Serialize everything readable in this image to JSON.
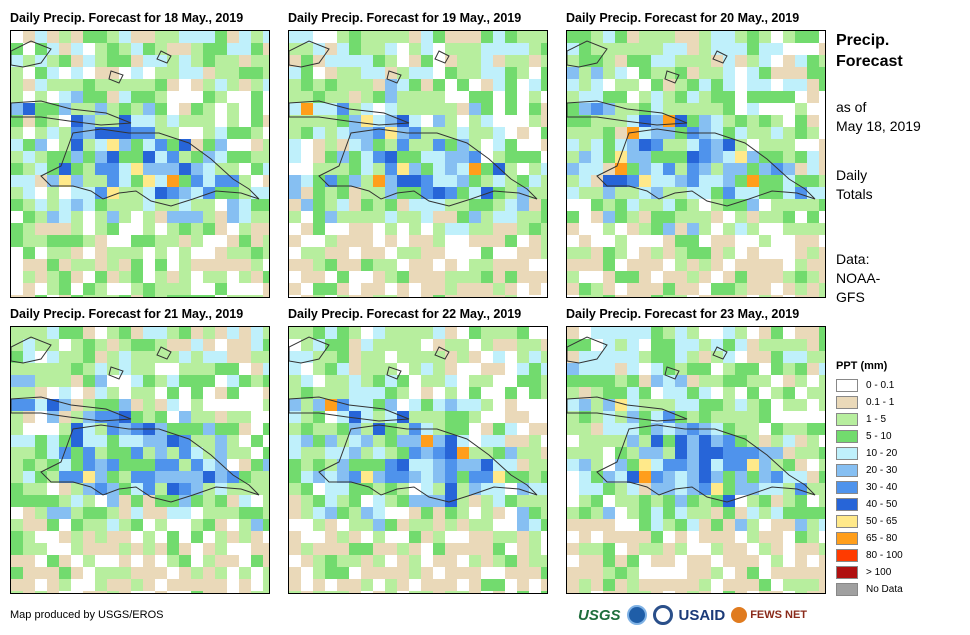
{
  "panels": [
    {
      "title": "Daily Precip. Forecast for 18 May., 2019",
      "seed": 18
    },
    {
      "title": "Daily Precip. Forecast for 19 May., 2019",
      "seed": 19
    },
    {
      "title": "Daily Precip. Forecast for 20 May., 2019",
      "seed": 20
    },
    {
      "title": "Daily Precip. Forecast for 21 May., 2019",
      "seed": 21
    },
    {
      "title": "Daily Precip. Forecast for 22 May., 2019",
      "seed": 22
    },
    {
      "title": "Daily Precip. Forecast for 23 May., 2019",
      "seed": 23
    }
  ],
  "side": {
    "title_line1": "Precip.",
    "title_line2": "Forecast",
    "asof_line1": "as of",
    "asof_line2": "May 18, 2019",
    "totals_line1": "Daily",
    "totals_line2": "Totals",
    "data_line1": "Data:",
    "data_line2": "NOAA-",
    "data_line3": "GFS"
  },
  "legend": {
    "title": "PPT (mm)",
    "items": [
      {
        "label": "0 - 0.1",
        "color": "#ffffff"
      },
      {
        "label": "0.1 - 1",
        "color": "#ead9b9"
      },
      {
        "label": "1 - 5",
        "color": "#b7ee9e"
      },
      {
        "label": "5 - 10",
        "color": "#72db6e"
      },
      {
        "label": "10 - 20",
        "color": "#bff0fb"
      },
      {
        "label": "20 - 30",
        "color": "#86bff2"
      },
      {
        "label": "30 - 40",
        "color": "#4f93ec"
      },
      {
        "label": "40 - 50",
        "color": "#2765d8"
      },
      {
        "label": "50 - 65",
        "color": "#ffe98a"
      },
      {
        "label": "65 - 80",
        "color": "#ff9e1b"
      },
      {
        "label": "80 - 100",
        "color": "#ff3b00"
      },
      {
        "label": "> 100",
        "color": "#b01010"
      },
      {
        "label": "No Data",
        "color": "#a0a0a0"
      }
    ]
  },
  "credit": "Map produced by USGS/EROS",
  "logos": {
    "usgs": "USGS",
    "usaid": "USAID",
    "fews": "FEWS NET"
  }
}
